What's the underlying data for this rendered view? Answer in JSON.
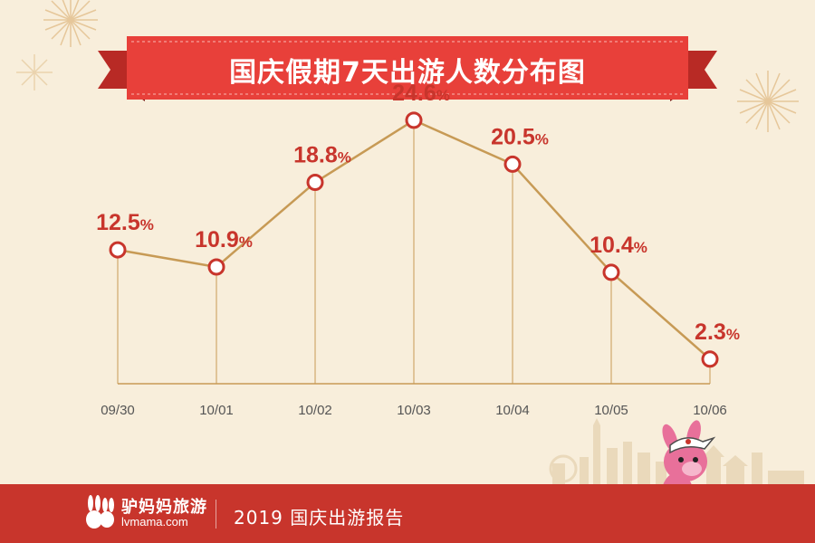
{
  "title": "国庆假期7天出游人数分布图",
  "footer": {
    "brand_cn": "驴妈妈旅游",
    "brand_en": "lvmama.com",
    "report_title": "2019 国庆出游报告"
  },
  "colors": {
    "background": "#f8eedb",
    "ribbon": "#e8403a",
    "ribbon_dark": "#b82a25",
    "line": "#c79a55",
    "marker": "#c8352c",
    "label": "#c8352c",
    "footer": "#c8352c"
  },
  "chart_data": {
    "type": "line",
    "categories": [
      "09/30",
      "10/01",
      "10/02",
      "10/03",
      "10/04",
      "10/05",
      "10/06"
    ],
    "values": [
      12.5,
      10.9,
      18.8,
      24.6,
      20.5,
      10.4,
      2.3
    ],
    "labels": [
      "12.5",
      "10.9",
      "18.8",
      "24.6",
      "20.5",
      "10.4",
      "2.3"
    ],
    "unit": "%",
    "ylim": [
      0,
      30
    ],
    "grid": false,
    "legend": "none"
  }
}
